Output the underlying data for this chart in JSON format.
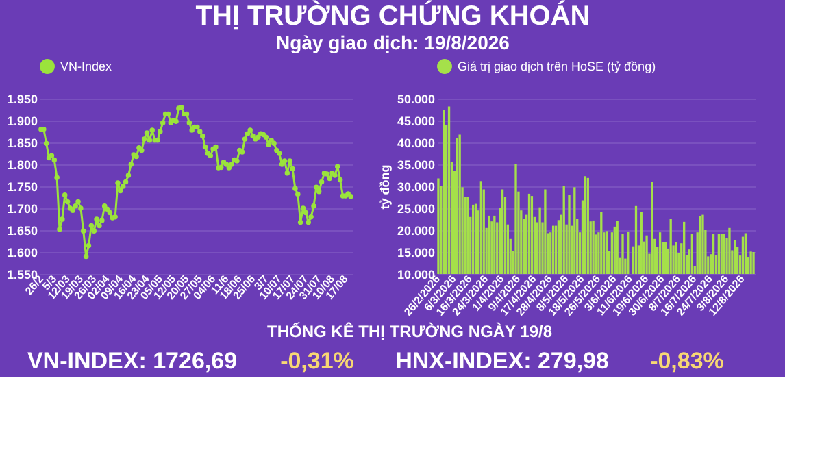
{
  "chart_data": [
    {
      "type": "line",
      "title": "THỊ TRƯỜNG CHỨNG KHOÁN",
      "subtitle": "Ngày giao dịch: 19/8/2026",
      "categories": [
        "26/2",
        null,
        null,
        null,
        null,
        "5/3",
        null,
        null,
        null,
        null,
        "12/03",
        null,
        null,
        null,
        null,
        "19/03",
        null,
        null,
        null,
        null,
        "26/03",
        null,
        null,
        null,
        null,
        "02/04",
        null,
        null,
        null,
        null,
        "09/04",
        null,
        null,
        null,
        null,
        "16/04",
        null,
        null,
        null,
        null,
        "23/04",
        null,
        null,
        null,
        null,
        "05/05",
        null,
        null,
        null,
        null,
        "12/05",
        null,
        null,
        null,
        null,
        "20/05",
        null,
        null,
        null,
        null,
        "27/05",
        null,
        null,
        null,
        null,
        "04/06",
        null,
        null,
        null,
        null,
        "11/6",
        null,
        null,
        null,
        null,
        "18/06",
        null,
        null,
        null,
        null,
        "25/06",
        null,
        null,
        null,
        null,
        "3/7",
        null,
        null,
        null,
        null,
        "10/07",
        null,
        null,
        null,
        null,
        "17/07",
        null,
        null,
        null,
        null,
        "24/07",
        null,
        null,
        null,
        null,
        "31/07",
        null,
        null,
        null,
        null,
        "10/08",
        null,
        null,
        null,
        null,
        "17/08",
        null,
        null
      ],
      "series": [
        {
          "name": "VN-Index",
          "color": "#9be33c",
          "values": [
            1880,
            1880,
            1848,
            1815,
            1820,
            1810,
            1770,
            1652,
            1675,
            1730,
            1715,
            1700,
            1695,
            1705,
            1715,
            1700,
            1648,
            1590,
            1615,
            1660,
            1648,
            1675,
            1660,
            1672,
            1705,
            1698,
            1690,
            1678,
            1680,
            1758,
            1740,
            1750,
            1760,
            1775,
            1800,
            1822,
            1818,
            1838,
            1832,
            1858,
            1872,
            1855,
            1878,
            1855,
            1855,
            1875,
            1895,
            1915,
            1915,
            1895,
            1900,
            1898,
            1928,
            1930,
            1915,
            1915,
            1895,
            1878,
            1885,
            1885,
            1875,
            1865,
            1840,
            1825,
            1820,
            1835,
            1840,
            1792,
            1793,
            1805,
            1800,
            1792,
            1800,
            1810,
            1808,
            1832,
            1828,
            1858,
            1870,
            1878,
            1865,
            1858,
            1862,
            1870,
            1868,
            1862,
            1845,
            1855,
            1848,
            1832,
            1825,
            1800,
            1808,
            1780,
            1808,
            1790,
            1745,
            1732,
            1668,
            1700,
            1690,
            1668,
            1680,
            1705,
            1748,
            1738,
            1760,
            1780,
            1778,
            1768,
            1780,
            1775,
            1795,
            1765,
            1728,
            1728,
            1733,
            1727
          ]
        }
      ],
      "ylim": [
        1550,
        1950
      ],
      "yticks": [
        {
          "value": 1550,
          "label": "1.550"
        },
        {
          "value": 1600,
          "label": "1.600"
        },
        {
          "value": 1650,
          "label": "1.650"
        },
        {
          "value": 1700,
          "label": "1.700"
        },
        {
          "value": 1750,
          "label": "1.750"
        },
        {
          "value": 1800,
          "label": "1.800"
        },
        {
          "value": 1850,
          "label": "1.850"
        },
        {
          "value": 1900,
          "label": "1.900"
        },
        {
          "value": 1950,
          "label": "1.950"
        }
      ],
      "grid": "y",
      "legend": "top",
      "marker": "circle",
      "line_style": "solid"
    },
    {
      "type": "bar",
      "ylabel": "tỷ đồng",
      "categories": [
        "26/2/2026",
        null,
        null,
        null,
        null,
        null,
        "6/3/2026",
        null,
        null,
        null,
        null,
        null,
        "16/3/2026",
        null,
        null,
        null,
        null,
        null,
        "24/3/2026",
        null,
        null,
        null,
        null,
        null,
        "1/4/2026",
        null,
        null,
        null,
        null,
        null,
        "9/4/2026",
        null,
        null,
        null,
        null,
        null,
        "17/4/2026",
        null,
        null,
        null,
        null,
        null,
        "28/4/2026",
        null,
        null,
        null,
        null,
        null,
        "8/5/2026",
        null,
        null,
        null,
        null,
        null,
        "18/5/2026",
        null,
        null,
        null,
        null,
        null,
        "26/5/2026",
        null,
        null,
        null,
        null,
        null,
        "3/6/2026",
        null,
        null,
        null,
        null,
        null,
        "11/6/2026",
        null,
        null,
        null,
        null,
        null,
        "19/6/2026",
        null,
        null,
        null,
        null,
        null,
        "30/6/2026",
        null,
        null,
        null,
        null,
        null,
        "8/7/2026",
        null,
        null,
        null,
        null,
        null,
        "16/7/2026",
        null,
        null,
        null,
        null,
        null,
        "24/7/2026",
        null,
        null,
        null,
        null,
        null,
        "3/8/2026",
        null,
        null,
        null,
        null,
        null,
        "12/8/2026",
        null,
        null,
        null,
        null
      ],
      "series": [
        {
          "name": "Giá trị giao dịch trên HoSE (tỷ đồng)",
          "color": "#a5e04a",
          "values": [
            31800,
            30000,
            47500,
            44000,
            48200,
            35500,
            33500,
            41000,
            41800,
            29800,
            27500,
            27500,
            23000,
            25800,
            26000,
            24500,
            31200,
            29300,
            20500,
            23300,
            22000,
            23300,
            21800,
            25000,
            29300,
            27500,
            21300,
            18000,
            15300,
            35000,
            28800,
            24500,
            22500,
            23500,
            28300,
            27800,
            23000,
            21800,
            25200,
            21800,
            29300,
            19300,
            19500,
            21000,
            21000,
            22300,
            23500,
            30000,
            21300,
            28000,
            21000,
            29800,
            22500,
            19500,
            26800,
            32300,
            31900,
            22000,
            22200,
            19000,
            19500,
            24200,
            19500,
            19800,
            15300,
            19500,
            20800,
            22100,
            13800,
            19200,
            13500,
            19700,
            null,
            16300,
            25500,
            16500,
            24100,
            17400,
            18800,
            14600,
            31000,
            18000,
            16200,
            19500,
            17300,
            17300,
            15800,
            22500,
            16500,
            17300,
            14700,
            17000,
            21900,
            14300,
            15600,
            19200,
            11800,
            19500,
            23200,
            23500,
            20000,
            14000,
            14500,
            19200,
            14300,
            19200,
            19200,
            19200,
            18200,
            20500,
            15400,
            17800,
            16100,
            14200,
            18500,
            19300,
            13900,
            15100,
            15000
          ]
        }
      ],
      "ylim": [
        10000,
        50000
      ],
      "yticks": [
        {
          "value": 10000,
          "label": "10.000"
        },
        {
          "value": 15000,
          "label": "15.000"
        },
        {
          "value": 20000,
          "label": "20.000"
        },
        {
          "value": 25000,
          "label": "25.000"
        },
        {
          "value": 30000,
          "label": "30.000"
        },
        {
          "value": 35000,
          "label": "35.000"
        },
        {
          "value": 40000,
          "label": "40.000"
        },
        {
          "value": 45000,
          "label": "45.000"
        },
        {
          "value": 50000,
          "label": "50.000"
        }
      ],
      "grid": "y",
      "legend": "top"
    },
    {
      "type": "other",
      "title": "THỐNG KÊ THỊ TRƯỜNG NGÀY 19/8",
      "annotations": [
        "VN-INDEX: 1726,69",
        "-0,31%",
        "HNX-INDEX: 279,98",
        "-0,83%"
      ]
    }
  ]
}
